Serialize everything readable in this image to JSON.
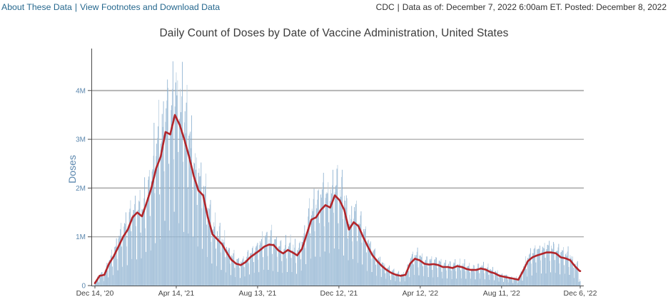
{
  "header": {
    "links": [
      {
        "label": "About These Data"
      },
      {
        "label": "View Footnotes and Download Data"
      }
    ],
    "separator": "|",
    "source_label": "CDC",
    "data_as_of": "Data as of: December 7, 2022 6:00am ET. Posted: December 8, 2022"
  },
  "chart_data": {
    "type": "bar",
    "title": "Daily Count of Doses by Date of Vaccine Administration, United States",
    "ylabel": "Doses",
    "xlabel": "",
    "start_date": "Dec 14, 2020",
    "end_date": "Dec 6, 2022",
    "total_days": 722,
    "ylim_millions": [
      0,
      4.8
    ],
    "grid": "horizontal",
    "legend_position": "none",
    "y_ticks": [
      {
        "value_millions": 0,
        "label": "0"
      },
      {
        "value_millions": 1,
        "label": "1M"
      },
      {
        "value_millions": 2,
        "label": "2M"
      },
      {
        "value_millions": 3,
        "label": "3M"
      },
      {
        "value_millions": 4,
        "label": "4M"
      }
    ],
    "x_ticks": [
      {
        "day": 0,
        "label": "Dec 14, '20"
      },
      {
        "day": 121,
        "label": "Apr 14, '21"
      },
      {
        "day": 242,
        "label": "Aug 13, '21"
      },
      {
        "day": 363,
        "label": "Dec 12, '21"
      },
      {
        "day": 484,
        "label": "Apr 12, '22"
      },
      {
        "day": 605,
        "label": "Aug 11, '22"
      },
      {
        "day": 722,
        "label": "Dec 6, '22"
      }
    ],
    "series": [
      {
        "name": "Daily doses administered (bars)",
        "type": "bar",
        "color": "#7ea7cb",
        "color_alt": "#b2cade",
        "max_bar_millions": 4.6
      },
      {
        "name": "7-day moving average (line)",
        "type": "line",
        "color": "#b2252a",
        "week_step_days": 7,
        "weekly_values_millions": [
          0.05,
          0.2,
          0.22,
          0.45,
          0.6,
          0.8,
          1.0,
          1.15,
          1.4,
          1.5,
          1.42,
          1.7,
          2.0,
          2.4,
          2.65,
          3.15,
          3.1,
          3.5,
          3.3,
          3.0,
          2.65,
          2.25,
          1.95,
          1.85,
          1.4,
          1.05,
          0.95,
          0.85,
          0.68,
          0.53,
          0.45,
          0.42,
          0.48,
          0.58,
          0.65,
          0.72,
          0.8,
          0.84,
          0.83,
          0.72,
          0.66,
          0.73,
          0.68,
          0.62,
          0.75,
          1.05,
          1.35,
          1.4,
          1.55,
          1.65,
          1.6,
          1.85,
          1.75,
          1.55,
          1.15,
          1.3,
          1.22,
          1.0,
          0.8,
          0.62,
          0.5,
          0.4,
          0.32,
          0.26,
          0.22,
          0.2,
          0.22,
          0.45,
          0.55,
          0.52,
          0.45,
          0.43,
          0.44,
          0.42,
          0.38,
          0.38,
          0.36,
          0.4,
          0.38,
          0.34,
          0.32,
          0.32,
          0.35,
          0.33,
          0.28,
          0.25,
          0.2,
          0.18,
          0.16,
          0.14,
          0.12,
          0.3,
          0.5,
          0.58,
          0.62,
          0.65,
          0.68,
          0.68,
          0.66,
          0.58,
          0.56,
          0.52,
          0.4,
          0.3,
          0.28
        ]
      }
    ],
    "bar_generation": {
      "start_weekday": "Monday",
      "day_of_week_factors": [
        1.1,
        1.14,
        1.16,
        1.24,
        1.38,
        0.78,
        0.4
      ],
      "jitter_base": 0.9,
      "jitter_amplitude": 0.2,
      "end_taper": [
        0.6,
        0.4,
        0.25
      ]
    }
  },
  "colors": {
    "bar_blue": "#7ea7cb",
    "bar_blue_light": "#b2cade",
    "avg_line_red": "#b2252a",
    "link_blue": "#26688e",
    "axis_label_blue": "#5b87ae",
    "axis_line": "#4a4a4a",
    "gridline": "#919191",
    "gridline_major": "#b0b0b0",
    "tick_text": "#444444",
    "header_text": "#313131",
    "title_text": "#3a3a3a"
  }
}
